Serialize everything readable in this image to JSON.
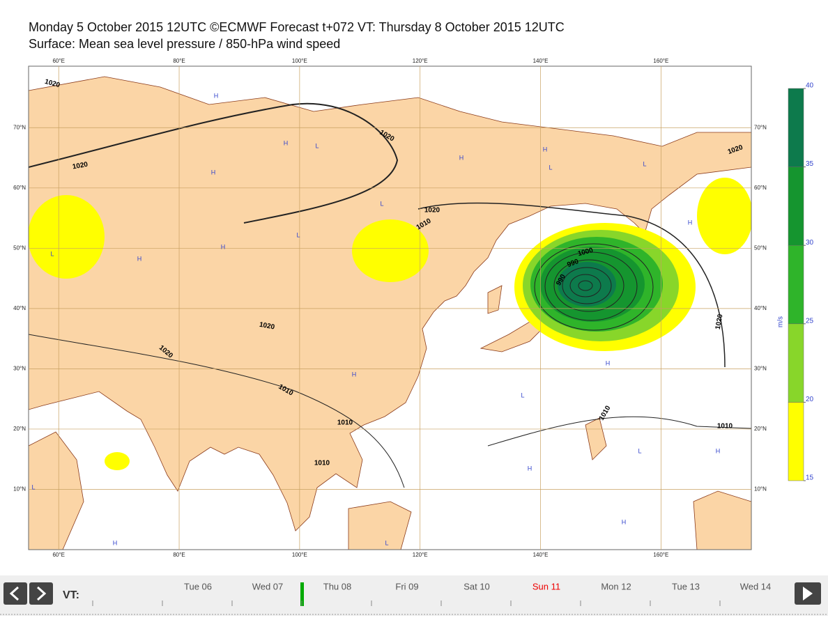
{
  "header": {
    "title": "Monday 5 October 2015 12UTC ©ECMWF Forecast t+072 VT: Thursday 8 October 2015 12UTC",
    "subtitle": "Surface: Mean sea level pressure / 850-hPa wind speed"
  },
  "map": {
    "xlim": [
      55,
      175
    ],
    "ylim": [
      0,
      80.2
    ],
    "lon_ticks": [
      {
        "value": 60,
        "label": "60°E"
      },
      {
        "value": 80,
        "label": "80°E"
      },
      {
        "value": 100,
        "label": "100°E"
      },
      {
        "value": 120,
        "label": "120°E"
      },
      {
        "value": 140,
        "label": "140°E"
      },
      {
        "value": 160,
        "label": "160°E"
      }
    ],
    "lat_ticks": [
      {
        "value": 70,
        "label": "70°N"
      },
      {
        "value": 60,
        "label": "60°N"
      },
      {
        "value": 50,
        "label": "50°N"
      },
      {
        "value": 40,
        "label": "40°N"
      },
      {
        "value": 30,
        "label": "30°N"
      },
      {
        "value": 20,
        "label": "20°N"
      },
      {
        "value": 10,
        "label": "10°N"
      }
    ],
    "isobar_labels": [
      "1020",
      "1020",
      "1020",
      "1020",
      "1010",
      "1020",
      "1020",
      "1010",
      "1010",
      "1010",
      "1000",
      "990",
      "990",
      "1010",
      "1010",
      "1020",
      "1020"
    ],
    "pressure_centers": [
      "H",
      "L",
      "H",
      "H",
      "L",
      "H",
      "L",
      "H",
      "L",
      "H",
      "H",
      "L",
      "H",
      "L",
      "H",
      "L",
      "H",
      "H",
      "L",
      "H",
      "L",
      "H",
      "L",
      "H"
    ]
  },
  "colorbar": {
    "unit": "m/s",
    "ticks": [
      15,
      20,
      25,
      30,
      35,
      40
    ],
    "colors": [
      "#ffff00",
      "#88d62a",
      "#2fb42a",
      "#15952f",
      "#0d7a4c"
    ]
  },
  "timeline": {
    "label": "VT:",
    "days": [
      "Tue 06",
      "Wed 07",
      "Thu 08",
      "Fri 09",
      "Sat 10",
      "Sun 11",
      "Mon 12",
      "Tue 13",
      "Wed 14"
    ]
  }
}
